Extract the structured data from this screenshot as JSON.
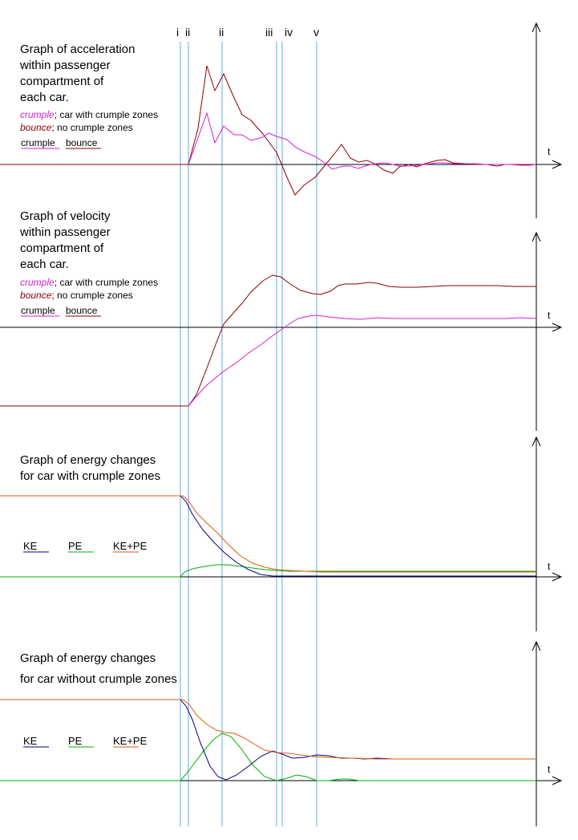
{
  "markers": [
    "i",
    "ii",
    "ii",
    "iii",
    "iv",
    "v"
  ],
  "colors": {
    "crumple": "#d020d0",
    "bounce": "#8b0000",
    "guide": "#6aaad8",
    "ke": "#00008b",
    "pe": "#00b000",
    "total": "#e05a10",
    "axis": "#000000"
  },
  "panels": {
    "acceleration": {
      "title": [
        "Graph of acceleration",
        "within passenger",
        "compartment of",
        "each car."
      ],
      "note_crumple": {
        "name": "crumple",
        "text": "; car with crumple zones"
      },
      "note_bounce": {
        "name": "bounce",
        "text": "; no crumple zones"
      },
      "legend": {
        "crumple": "crumple",
        "bounce": "bounce"
      },
      "axis_label": "t"
    },
    "velocity": {
      "title": [
        "Graph of velocity",
        "within passenger",
        "compartment of",
        "each car."
      ],
      "note_crumple": {
        "name": "crumple",
        "text": "; car with crumple zones"
      },
      "note_bounce": {
        "name": "bounce",
        "text": "; no crumple zones"
      },
      "legend": {
        "crumple": "crumple",
        "bounce": "bounce"
      },
      "axis_label": "t"
    },
    "energy_crumple": {
      "title": [
        "Graph of energy changes",
        "for car  with crumple zones"
      ],
      "legend": {
        "ke": "KE",
        "pe": "PE",
        "total": "KE+PE"
      },
      "axis_label": "t"
    },
    "energy_no_crumple": {
      "title": [
        "Graph of energy changes",
        "for car without crumple zones"
      ],
      "legend": {
        "ke": "KE",
        "pe": "PE",
        "total": "KE+PE"
      },
      "axis_label": "t"
    }
  }
}
